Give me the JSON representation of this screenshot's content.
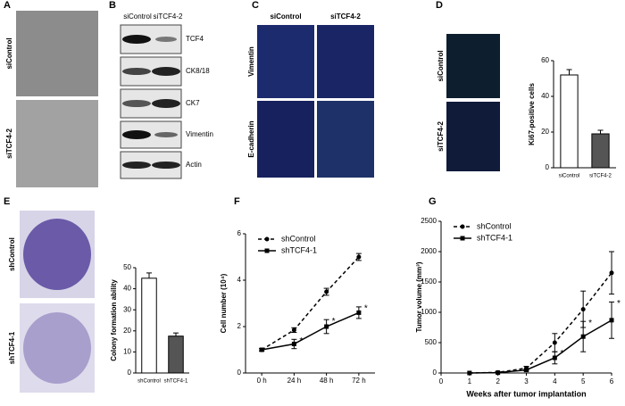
{
  "panels": {
    "labels": [
      "A",
      "B",
      "C",
      "D",
      "E",
      "F",
      "G"
    ]
  },
  "panel_a": {
    "rows": [
      "siControl",
      "siTCF4-2"
    ]
  },
  "panel_b": {
    "columns": [
      "siControl",
      "siTCF4-2"
    ],
    "bands": [
      "TCF4",
      "CK8/18",
      "CK7",
      "Vimentin",
      "Actin"
    ]
  },
  "panel_c": {
    "columns": [
      "siControl",
      "siTCF4-2"
    ],
    "rows": [
      "Vimentin",
      "E-cadherin"
    ]
  },
  "panel_d": {
    "rows": [
      "siControl",
      "siTCF4-2"
    ]
  },
  "panel_e": {
    "rows": [
      "shControl",
      "shTCF4-1"
    ]
  },
  "chart_data": [
    {
      "type": "bar",
      "ylabel": "Ki67-positive cells",
      "categories": [
        "siControl",
        "siTCF4-2"
      ],
      "values": [
        52,
        19
      ],
      "errors": [
        3,
        2
      ],
      "colors": [
        "#ffffff",
        "#555555"
      ],
      "ylim": [
        0,
        60
      ],
      "yticks": [
        0,
        20,
        40,
        60
      ]
    },
    {
      "type": "bar",
      "ylabel": "Colony formation ability",
      "categories": [
        "shControl",
        "shTCF4-1"
      ],
      "values": [
        45,
        17.5
      ],
      "errors": [
        2.5,
        1.5
      ],
      "colors": [
        "#ffffff",
        "#555555"
      ],
      "ylim": [
        0,
        50
      ],
      "yticks": [
        0,
        10,
        20,
        30,
        40,
        50
      ]
    },
    {
      "type": "line",
      "ylabel": "Cell number (10⁴)",
      "categories": [
        "0 h",
        "24 h",
        "48 h",
        "72 h"
      ],
      "ylim": [
        0,
        6
      ],
      "yticks": [
        0,
        2,
        4,
        6
      ],
      "legend": "upper left",
      "series": [
        {
          "name": "shControl",
          "color": "#000000",
          "line_style": "dashed",
          "marker": "circle",
          "values": [
            1,
            1.85,
            3.5,
            5.0
          ],
          "errors": [
            0.05,
            0.1,
            0.15,
            0.15
          ]
        },
        {
          "name": "shTCF4-1",
          "color": "#000000",
          "line_style": "solid",
          "marker": "square",
          "values": [
            1,
            1.25,
            2.0,
            2.6
          ],
          "errors": [
            0.05,
            0.2,
            0.3,
            0.25
          ],
          "significance_labels": [
            null,
            "*",
            "*",
            "*"
          ]
        }
      ]
    },
    {
      "type": "line",
      "ylabel": "Tumor volume (mm³)",
      "xlabel": "Weeks after tumor implantation",
      "x": [
        1,
        2,
        3,
        4,
        5,
        6
      ],
      "xlim": [
        0,
        6
      ],
      "xticks": [
        0,
        1,
        2,
        3,
        4,
        5,
        6
      ],
      "ylim": [
        0,
        2500
      ],
      "yticks": [
        0,
        500,
        1000,
        1500,
        2000,
        2500
      ],
      "legend": "upper left",
      "series": [
        {
          "name": "shControl",
          "color": "#000000",
          "line_style": "dashed",
          "marker": "circle",
          "values": [
            0,
            10,
            80,
            500,
            1050,
            1650
          ],
          "errors": [
            0,
            10,
            30,
            150,
            300,
            350
          ]
        },
        {
          "name": "shTCF4-1",
          "color": "#000000",
          "line_style": "solid",
          "marker": "square",
          "values": [
            0,
            5,
            50,
            250,
            600,
            870
          ],
          "errors": [
            0,
            5,
            20,
            100,
            250,
            300
          ],
          "significance_labels": [
            null,
            null,
            null,
            "*",
            "*",
            "*"
          ]
        }
      ]
    }
  ]
}
